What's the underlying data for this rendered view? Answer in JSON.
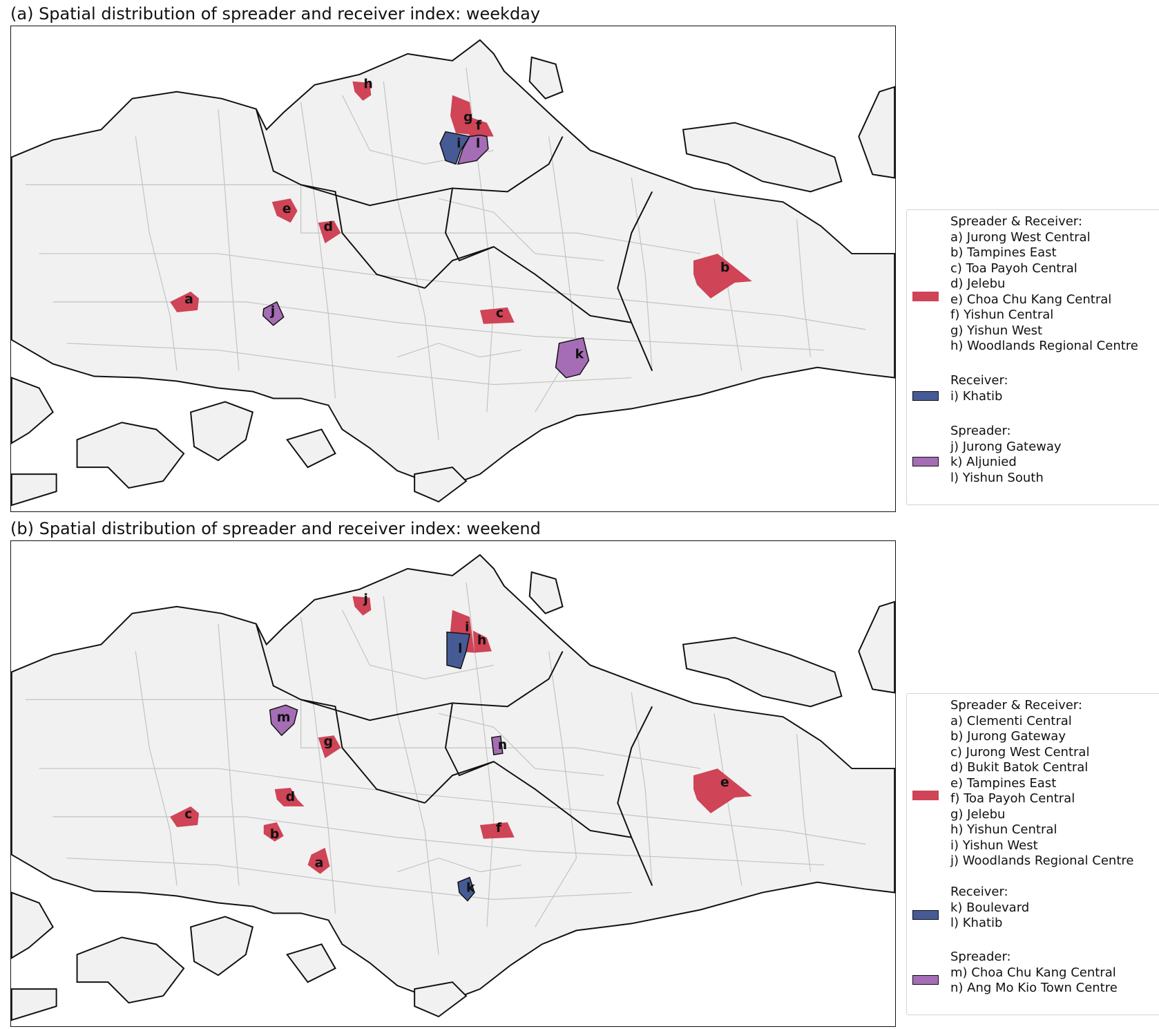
{
  "colors": {
    "spreader_receiver": "#cf4456",
    "receiver": "#465b95",
    "spreader": "#a56db5",
    "land": "#f1f1f1",
    "subzone_border": "#c3c3c3",
    "region_border": "#111111"
  },
  "panels": [
    {
      "title": "(a) Spatial distribution of spreader and receiver index: weekday",
      "labels": {
        "a": "a",
        "b": "b",
        "c": "c",
        "d": "d",
        "e": "e",
        "f": "f",
        "g": "g",
        "h": "h",
        "i": "i",
        "j": "j",
        "k": "k",
        "l": "l"
      },
      "legend": {
        "spreader_receiver": {
          "header": "Spreader & Receiver:",
          "items": [
            "a) Jurong West Central",
            "b) Tampines East",
            "c) Toa Payoh Central",
            "d) Jelebu",
            "e) Choa Chu Kang Central",
            "f) Yishun Central",
            "g) Yishun West",
            "h) Woodlands Regional Centre"
          ]
        },
        "receiver": {
          "header": "Receiver:",
          "items": [
            "i) Khatib"
          ]
        },
        "spreader": {
          "header": "Spreader:",
          "items": [
            "j) Jurong Gateway",
            "k) Aljunied",
            "l) Yishun South"
          ]
        }
      }
    },
    {
      "title": "(b) Spatial distribution of spreader and receiver index: weekend",
      "labels": {
        "a": "a",
        "b": "b",
        "c": "c",
        "d": "d",
        "e": "e",
        "f": "f",
        "g": "g",
        "h": "h",
        "i": "i",
        "j": "j",
        "k": "k",
        "l": "l",
        "m": "m",
        "n": "n"
      },
      "legend": {
        "spreader_receiver": {
          "header": "Spreader & Receiver:",
          "items": [
            "a) Clementi Central",
            "b) Jurong Gateway",
            "c) Jurong West Central",
            "d) Bukit Batok Central",
            "e) Tampines East",
            "f) Toa Payoh Central",
            "g) Jelebu",
            "h) Yishun Central",
            "i) Yishun West",
            "j) Woodlands Regional Centre"
          ]
        },
        "receiver": {
          "header": "Receiver:",
          "items": [
            "k) Boulevard",
            "l) Khatib"
          ]
        },
        "spreader": {
          "header": "Spreader:",
          "items": [
            "m) Choa Chu Kang Central",
            "n) Ang Mo Kio Town Centre"
          ]
        }
      }
    }
  ]
}
